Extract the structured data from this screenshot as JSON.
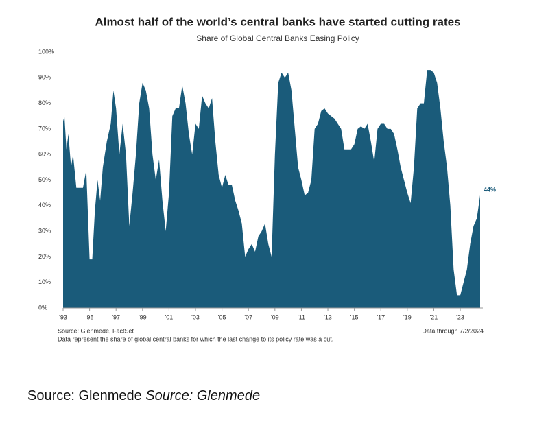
{
  "chart_data": {
    "type": "area",
    "title": "Almost half of the world’s central banks have started cutting rates",
    "subtitle": "Share of Global Central Banks Easing Policy",
    "source": "Source: Glenmede, FactSet",
    "date_note": "Data through 7/2/2024",
    "footnote": "Data represent the share of global central banks for which the last change to its policy rate was a cut.",
    "color": "#1a5b7a",
    "x": [
      1993.0,
      1993.1,
      1993.25,
      1993.4,
      1993.6,
      1993.75,
      1994.0,
      1994.5,
      1994.75,
      1995.0,
      1995.2,
      1995.4,
      1995.6,
      1995.8,
      1996.0,
      1996.3,
      1996.6,
      1996.8,
      1997.0,
      1997.25,
      1997.5,
      1997.75,
      1998.0,
      1998.25,
      1998.5,
      1998.75,
      1999.0,
      1999.25,
      1999.5,
      1999.75,
      2000.0,
      2000.25,
      2000.5,
      2000.75,
      2001.0,
      2001.25,
      2001.5,
      2001.75,
      2002.0,
      2002.25,
      2002.5,
      2002.75,
      2003.0,
      2003.25,
      2003.5,
      2003.75,
      2004.0,
      2004.25,
      2004.5,
      2004.75,
      2005.0,
      2005.25,
      2005.5,
      2005.75,
      2006.0,
      2006.25,
      2006.5,
      2006.75,
      2007.0,
      2007.25,
      2007.5,
      2007.75,
      2008.0,
      2008.25,
      2008.5,
      2008.75,
      2009.0,
      2009.25,
      2009.5,
      2009.75,
      2010.0,
      2010.25,
      2010.5,
      2010.75,
      2011.0,
      2011.25,
      2011.5,
      2011.75,
      2012.0,
      2012.25,
      2012.5,
      2012.75,
      2013.0,
      2013.25,
      2013.5,
      2013.75,
      2014.0,
      2014.25,
      2014.5,
      2014.75,
      2015.0,
      2015.25,
      2015.5,
      2015.75,
      2016.0,
      2016.25,
      2016.5,
      2016.75,
      2017.0,
      2017.25,
      2017.5,
      2017.75,
      2018.0,
      2018.25,
      2018.5,
      2018.75,
      2019.0,
      2019.25,
      2019.5,
      2019.75,
      2020.0,
      2020.25,
      2020.5,
      2020.75,
      2021.0,
      2021.25,
      2021.5,
      2021.75,
      2022.0,
      2022.25,
      2022.5,
      2022.75,
      2023.0,
      2023.25,
      2023.5,
      2023.75,
      2024.0,
      2024.25,
      2024.5
    ],
    "values": [
      73,
      75,
      62,
      68,
      55,
      60,
      47,
      47,
      54,
      19,
      19,
      38,
      50,
      42,
      55,
      65,
      72,
      85,
      78,
      60,
      72,
      60,
      32,
      45,
      60,
      80,
      88,
      85,
      78,
      60,
      50,
      58,
      42,
      30,
      45,
      75,
      78,
      78,
      87,
      80,
      68,
      60,
      72,
      70,
      83,
      80,
      78,
      82,
      65,
      52,
      47,
      52,
      48,
      48,
      42,
      38,
      33,
      20,
      23,
      25,
      22,
      28,
      30,
      33,
      25,
      20,
      60,
      88,
      92,
      90,
      92,
      85,
      70,
      55,
      50,
      44,
      45,
      50,
      70,
      72,
      77,
      78,
      76,
      75,
      74,
      72,
      70,
      62,
      62,
      62,
      64,
      70,
      71,
      70,
      72,
      65,
      57,
      70,
      72,
      72,
      70,
      70,
      68,
      62,
      55,
      50,
      45,
      41,
      55,
      78,
      80,
      80,
      93,
      93,
      92,
      88,
      78,
      65,
      55,
      40,
      15,
      5,
      5,
      10,
      15,
      25,
      32,
      35,
      44
    ],
    "value_labels": [
      null,
      null,
      null,
      null,
      null,
      null,
      null,
      null,
      null,
      null,
      null,
      null,
      null,
      null,
      null,
      null,
      null,
      null,
      null,
      null,
      null,
      null,
      null,
      null,
      null,
      null,
      null,
      null,
      null,
      null,
      null,
      null,
      null,
      null,
      null,
      null,
      null,
      null,
      null,
      null,
      null,
      null,
      null,
      null,
      null,
      null,
      null,
      null,
      null,
      null,
      null,
      null,
      null,
      null,
      null,
      null,
      null,
      null,
      null,
      null,
      null,
      null,
      null,
      null,
      null,
      null,
      null,
      null,
      null,
      null,
      null,
      null,
      null,
      null,
      null,
      null,
      null,
      null,
      null,
      null,
      null,
      null,
      null,
      null,
      null,
      null,
      null,
      null,
      null,
      null,
      null,
      null,
      null,
      null,
      null,
      null,
      null,
      null,
      null,
      null,
      null,
      null,
      null,
      null,
      null,
      null,
      null,
      null,
      null,
      null,
      null,
      null,
      null,
      null,
      null,
      null,
      null,
      null,
      null,
      null,
      null,
      null,
      null,
      null,
      null,
      null,
      null,
      null,
      "44%"
    ],
    "xlim": [
      1993,
      2024.5
    ],
    "ylim": [
      0,
      100
    ],
    "yticks": [
      {
        "value": 0,
        "label": "0%"
      },
      {
        "value": 10,
        "label": "10%"
      },
      {
        "value": 20,
        "label": "20%"
      },
      {
        "value": 30,
        "label": "30%"
      },
      {
        "value": 40,
        "label": "40%"
      },
      {
        "value": 50,
        "label": "50%"
      },
      {
        "value": 60,
        "label": "60%"
      },
      {
        "value": 70,
        "label": "70%"
      },
      {
        "value": 80,
        "label": "80%"
      },
      {
        "value": 90,
        "label": "90%"
      },
      {
        "value": 100,
        "label": "100%"
      }
    ],
    "xticks": [
      {
        "value": 1993,
        "label": "'93"
      },
      {
        "value": 1995,
        "label": "'95"
      },
      {
        "value": 1997,
        "label": "'97"
      },
      {
        "value": 1999,
        "label": "'99"
      },
      {
        "value": 2001,
        "label": "'01"
      },
      {
        "value": 2003,
        "label": "'03"
      },
      {
        "value": 2005,
        "label": "'05"
      },
      {
        "value": 2007,
        "label": "'07"
      },
      {
        "value": 2009,
        "label": "'09"
      },
      {
        "value": 2011,
        "label": "'11"
      },
      {
        "value": 2013,
        "label": "'13"
      },
      {
        "value": 2015,
        "label": "'15"
      },
      {
        "value": 2017,
        "label": "'17"
      },
      {
        "value": 2019,
        "label": "'19"
      },
      {
        "value": 2021,
        "label": "'21"
      },
      {
        "value": 2023,
        "label": "'23"
      }
    ],
    "grid": false
  },
  "caption": {
    "text": "Source: Glenmede",
    "italic": "Source: Glenmede"
  }
}
